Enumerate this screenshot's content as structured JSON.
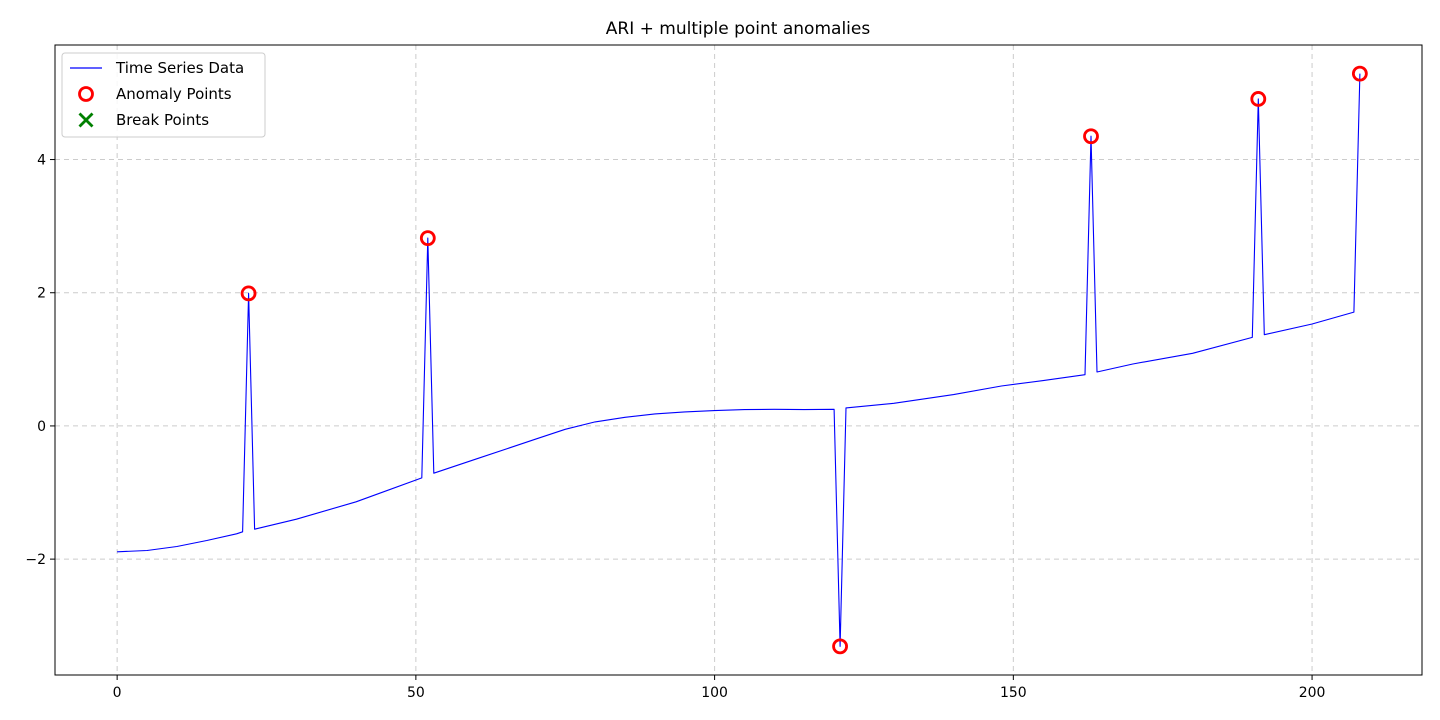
{
  "chart_data": {
    "type": "line",
    "title": "ARI + multiple point anomalies",
    "xlabel": "",
    "ylabel": "",
    "xlim": [
      -10.4,
      218.4
    ],
    "ylim": [
      -3.74,
      5.72
    ],
    "xticks": [
      0,
      50,
      100,
      150,
      200
    ],
    "yticks": [
      -2,
      0,
      2,
      4
    ],
    "xtick_labels": [
      "0",
      "50",
      "100",
      "150",
      "200"
    ],
    "ytick_labels": [
      "−2",
      "0",
      "2",
      "4"
    ],
    "grid": true,
    "legend_position": "top-left",
    "legend": [
      {
        "label": "Time Series Data",
        "marker": "line",
        "color": "#0000ff"
      },
      {
        "label": "Anomaly Points",
        "marker": "circle",
        "color": "#ff0000"
      },
      {
        "label": "Break Points",
        "marker": "x",
        "color": "#008000"
      }
    ],
    "series": [
      {
        "name": "Time Series Data",
        "color": "#0000ff",
        "points": [
          [
            0,
            -1.89
          ],
          [
            5,
            -1.87
          ],
          [
            10,
            -1.81
          ],
          [
            15,
            -1.72
          ],
          [
            20,
            -1.62
          ],
          [
            21,
            -1.59
          ],
          [
            22,
            1.99
          ],
          [
            23,
            -1.55
          ],
          [
            30,
            -1.4
          ],
          [
            40,
            -1.14
          ],
          [
            51,
            -0.78
          ],
          [
            52,
            2.82
          ],
          [
            53,
            -0.71
          ],
          [
            60,
            -0.5
          ],
          [
            70,
            -0.2
          ],
          [
            75,
            -0.05
          ],
          [
            80,
            0.06
          ],
          [
            85,
            0.13
          ],
          [
            90,
            0.18
          ],
          [
            95,
            0.21
          ],
          [
            100,
            0.23
          ],
          [
            105,
            0.245
          ],
          [
            110,
            0.25
          ],
          [
            115,
            0.245
          ],
          [
            120,
            0.25
          ],
          [
            121,
            -3.31
          ],
          [
            122,
            0.27
          ],
          [
            130,
            0.34
          ],
          [
            140,
            0.47
          ],
          [
            148,
            0.6
          ],
          [
            155,
            0.68
          ],
          [
            162,
            0.77
          ],
          [
            163,
            4.35
          ],
          [
            164,
            0.81
          ],
          [
            170,
            0.93
          ],
          [
            180,
            1.09
          ],
          [
            190,
            1.33
          ],
          [
            191,
            4.91
          ],
          [
            192,
            1.37
          ],
          [
            200,
            1.53
          ],
          [
            207,
            1.71
          ],
          [
            208,
            5.29
          ]
        ]
      },
      {
        "name": "Anomaly Points",
        "color": "#ff0000",
        "points": [
          [
            22,
            1.99
          ],
          [
            52,
            2.82
          ],
          [
            121,
            -3.31
          ],
          [
            163,
            4.35
          ],
          [
            191,
            4.91
          ],
          [
            208,
            5.29
          ]
        ]
      },
      {
        "name": "Break Points",
        "color": "#008000",
        "points": []
      }
    ]
  }
}
